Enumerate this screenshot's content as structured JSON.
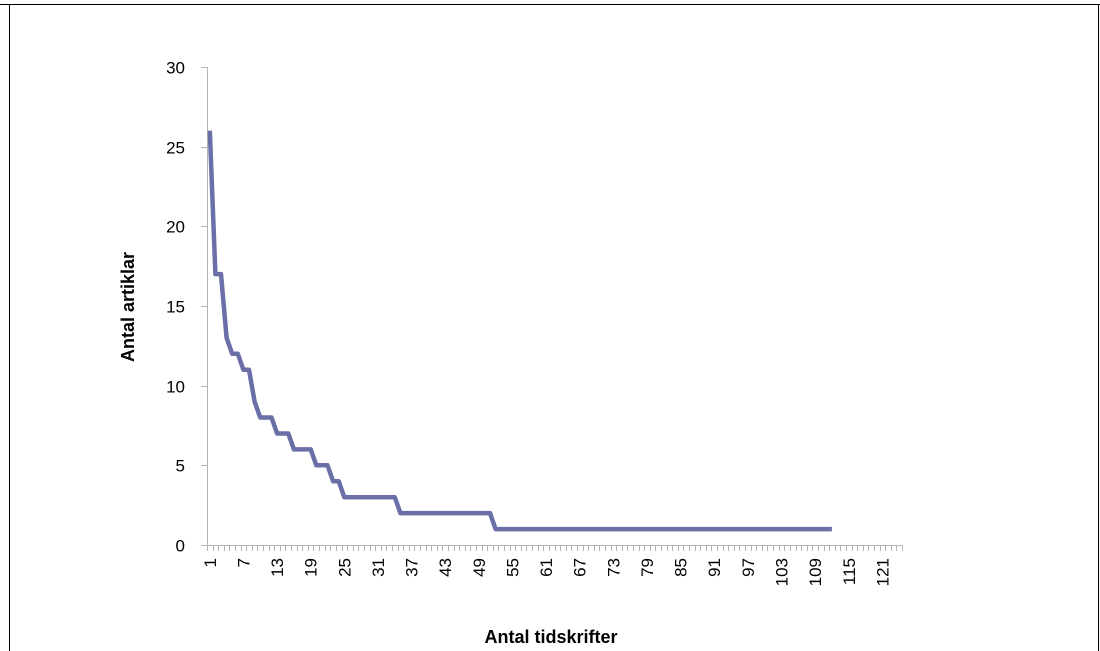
{
  "chart_data": {
    "type": "line",
    "title": "",
    "xlabel": "Antal tidskrifter",
    "ylabel": "Antal artiklar",
    "ylim": [
      0,
      30
    ],
    "yticks": [
      0,
      5,
      10,
      15,
      20,
      25,
      30
    ],
    "xlim": [
      1,
      124
    ],
    "xtick_labels": [
      "1",
      "7",
      "13",
      "19",
      "25",
      "31",
      "37",
      "43",
      "49",
      "55",
      "61",
      "67",
      "73",
      "79",
      "85",
      "91",
      "97",
      "103",
      "109",
      "115",
      "121"
    ],
    "grid": false,
    "legend": "none",
    "series": [
      {
        "color": "#6b6fa8",
        "points": [
          [
            1,
            26
          ],
          [
            2,
            17
          ],
          [
            3,
            17
          ],
          [
            4,
            13
          ],
          [
            5,
            12
          ],
          [
            6,
            12
          ],
          [
            7,
            11
          ],
          [
            8,
            11
          ],
          [
            9,
            9
          ],
          [
            10,
            8
          ],
          [
            11,
            8
          ],
          [
            12,
            8
          ],
          [
            13,
            7
          ],
          [
            14,
            7
          ],
          [
            15,
            7
          ],
          [
            16,
            6
          ],
          [
            17,
            6
          ],
          [
            18,
            6
          ],
          [
            19,
            6
          ],
          [
            20,
            5
          ],
          [
            21,
            5
          ],
          [
            22,
            5
          ],
          [
            23,
            4
          ],
          [
            24,
            4
          ],
          [
            25,
            3
          ],
          [
            34,
            3
          ],
          [
            35,
            2
          ],
          [
            51,
            2
          ],
          [
            52,
            1
          ],
          [
            112,
            1
          ]
        ]
      }
    ]
  }
}
